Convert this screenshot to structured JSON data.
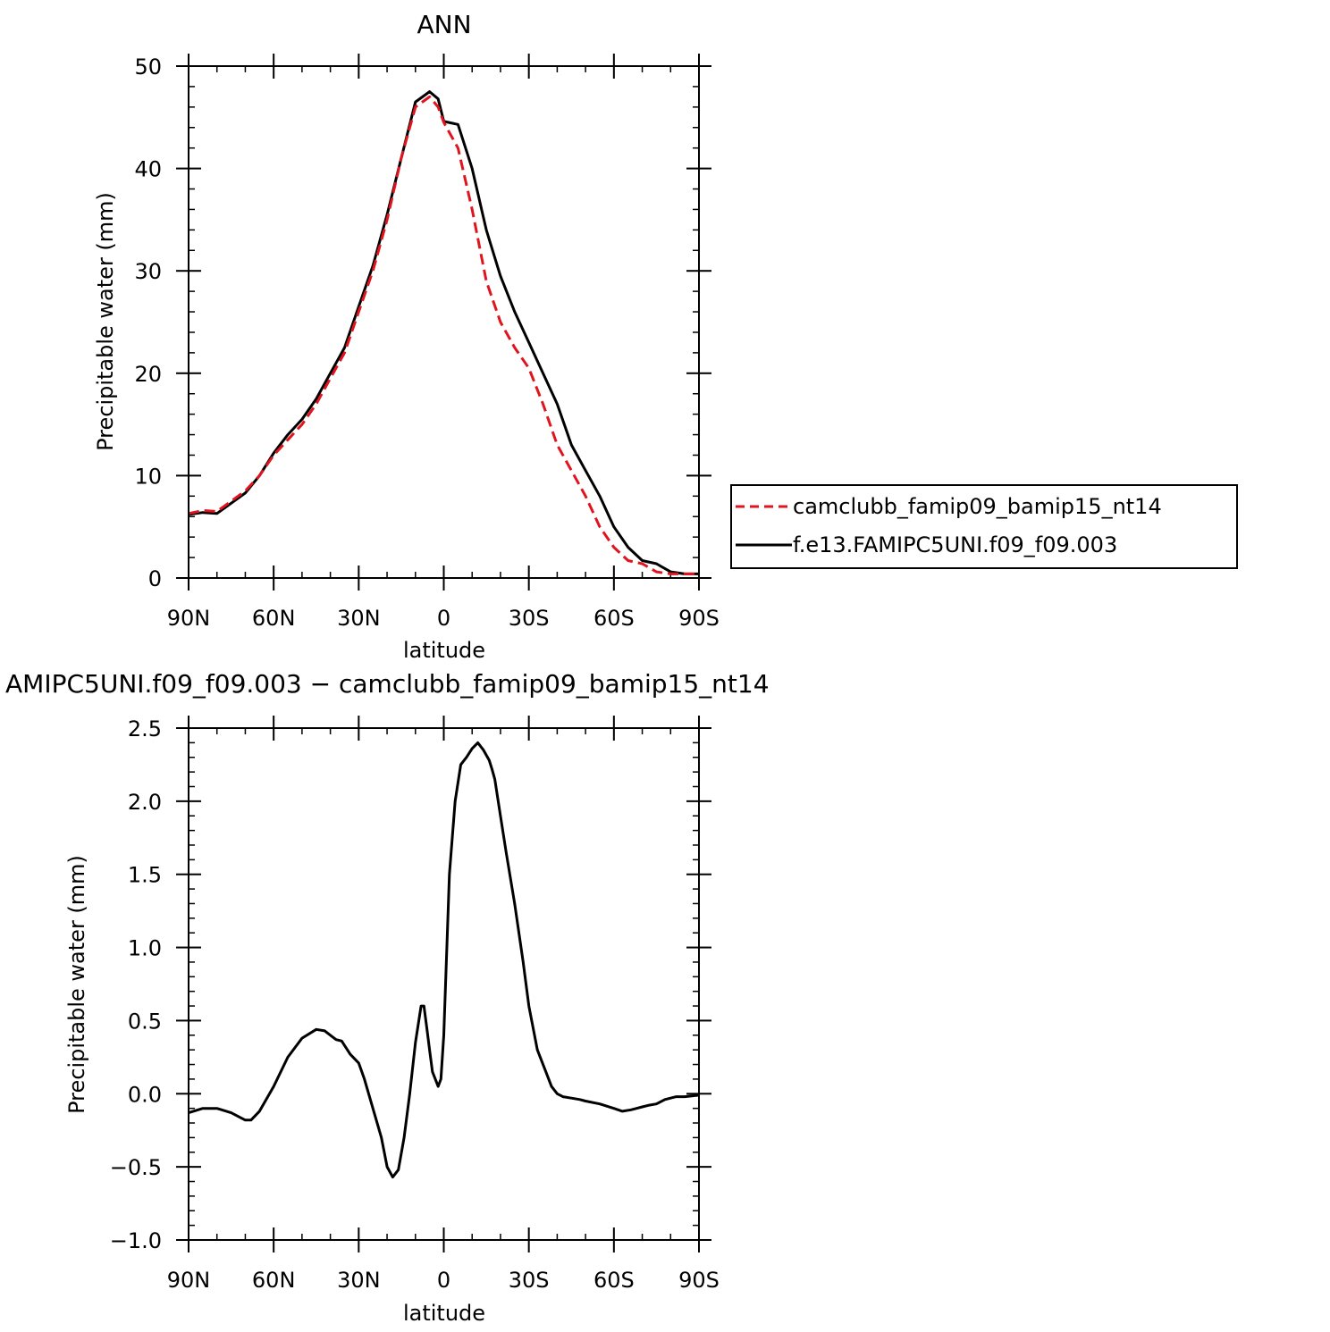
{
  "colors": {
    "series_ref": "#e0141e",
    "series_model": "#000000"
  },
  "chart_data": [
    {
      "type": "line",
      "title": "ANN",
      "xlabel": "latitude",
      "ylabel": "Precipitable water (mm)",
      "xlim": [
        90,
        -90
      ],
      "ylim": [
        0,
        50
      ],
      "xticks": [
        90,
        60,
        30,
        0,
        -30,
        -60,
        -90
      ],
      "xtick_labels": [
        "90N",
        "60N",
        "30N",
        "0",
        "30S",
        "60S",
        "90S"
      ],
      "yticks": [
        0,
        10,
        20,
        30,
        40,
        50
      ],
      "ytick_labels": [
        "0",
        "10",
        "20",
        "30",
        "40",
        "50"
      ],
      "legend_position": "right",
      "series": [
        {
          "name": "camclubb_famip09_bamip15_nt14",
          "style": "dashed",
          "x": [
            90,
            85,
            80,
            75,
            70,
            65,
            60,
            55,
            50,
            45,
            40,
            35,
            30,
            25,
            20,
            15,
            10,
            5,
            2,
            0,
            -5,
            -10,
            -15,
            -20,
            -25,
            -30,
            -35,
            -40,
            -45,
            -50,
            -55,
            -60,
            -65,
            -70,
            -75,
            -80,
            -85,
            -90
          ],
          "y": [
            6.3,
            6.6,
            6.5,
            7.5,
            8.5,
            10.0,
            12.0,
            13.5,
            15.0,
            17.0,
            19.5,
            22.0,
            26.0,
            30.0,
            35.0,
            41.0,
            46.0,
            47.0,
            46.0,
            44.5,
            42.0,
            36.0,
            29.0,
            25.0,
            22.5,
            20.5,
            17.0,
            13.0,
            10.5,
            8.0,
            5.0,
            3.0,
            1.7,
            1.4,
            0.6,
            0.4,
            0.4,
            0.4
          ]
        },
        {
          "name": "f.e13.FAMIPC5UNI.f09_f09.003",
          "style": "solid",
          "x": [
            90,
            85,
            80,
            75,
            70,
            65,
            60,
            55,
            50,
            45,
            40,
            35,
            30,
            25,
            20,
            15,
            10,
            5,
            2,
            0,
            -5,
            -10,
            -15,
            -20,
            -25,
            -30,
            -35,
            -40,
            -45,
            -50,
            -55,
            -60,
            -65,
            -70,
            -75,
            -80,
            -85,
            -90
          ],
          "y": [
            6.2,
            6.4,
            6.3,
            7.3,
            8.3,
            10.0,
            12.2,
            14.0,
            15.5,
            17.5,
            20.0,
            22.5,
            26.5,
            30.5,
            35.5,
            41.0,
            46.5,
            47.5,
            46.8,
            44.6,
            44.3,
            40.0,
            34.0,
            29.5,
            26.0,
            23.0,
            20.0,
            17.0,
            13.0,
            10.5,
            8.0,
            5.0,
            3.0,
            1.7,
            1.4,
            0.6,
            0.4,
            0.4
          ]
        }
      ]
    },
    {
      "type": "line",
      "title": "AMIPC5UNI.f09_f09.003 − camclubb_famip09_bamip15_nt14",
      "xlabel": "latitude",
      "ylabel": "Precipitable water (mm)",
      "xlim": [
        90,
        -90
      ],
      "ylim": [
        -1.0,
        2.5
      ],
      "xticks": [
        90,
        60,
        30,
        0,
        -30,
        -60,
        -90
      ],
      "xtick_labels": [
        "90N",
        "60N",
        "30N",
        "0",
        "30S",
        "60S",
        "90S"
      ],
      "yticks": [
        -1.0,
        -0.5,
        0.0,
        0.5,
        1.0,
        1.5,
        2.0,
        2.5
      ],
      "ytick_labels": [
        "−1.0",
        "−0.5",
        "0.0",
        "0.5",
        "1.0",
        "1.5",
        "2.0",
        "2.5"
      ],
      "series": [
        {
          "style": "solid",
          "x": [
            90,
            85,
            80,
            75,
            70,
            68,
            65,
            60,
            55,
            50,
            45,
            42,
            40,
            38,
            36,
            33,
            30,
            28,
            25,
            22,
            20,
            18,
            16,
            14,
            12,
            10,
            8,
            7,
            6,
            5,
            4,
            2,
            1,
            0,
            -2,
            -4,
            -6,
            -8,
            -10,
            -12,
            -14,
            -16,
            -17,
            -18,
            -20,
            -22,
            -25,
            -28,
            -30,
            -33,
            -36,
            -38,
            -40,
            -42,
            -45,
            -48,
            -50,
            -55,
            -60,
            -63,
            -66,
            -68,
            -70,
            -72,
            -75,
            -78,
            -82,
            -85,
            -90
          ],
          "y": [
            -0.13,
            -0.1,
            -0.1,
            -0.13,
            -0.18,
            -0.18,
            -0.12,
            0.05,
            0.25,
            0.38,
            0.44,
            0.43,
            0.4,
            0.37,
            0.36,
            0.27,
            0.21,
            0.1,
            -0.1,
            -0.3,
            -0.5,
            -0.57,
            -0.52,
            -0.3,
            0.0,
            0.35,
            0.6,
            0.6,
            0.45,
            0.3,
            0.15,
            0.05,
            0.1,
            0.4,
            1.5,
            2.0,
            2.25,
            2.3,
            2.36,
            2.4,
            2.35,
            2.28,
            2.22,
            2.15,
            1.9,
            1.65,
            1.3,
            0.9,
            0.6,
            0.3,
            0.15,
            0.05,
            0.0,
            -0.02,
            -0.03,
            -0.04,
            -0.05,
            -0.07,
            -0.1,
            -0.12,
            -0.11,
            -0.1,
            -0.09,
            -0.08,
            -0.07,
            -0.04,
            -0.02,
            -0.02,
            -0.01
          ]
        }
      ]
    }
  ]
}
